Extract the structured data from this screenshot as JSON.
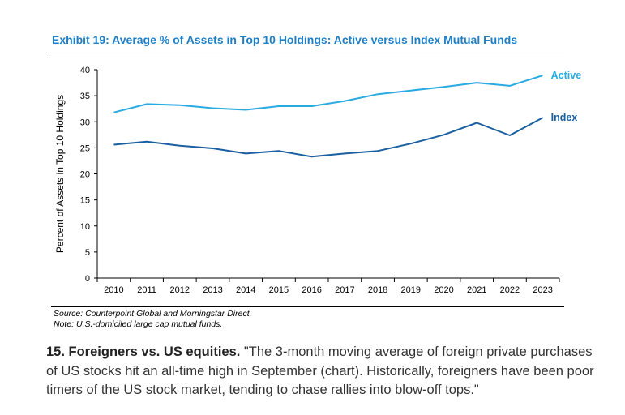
{
  "exhibit_title": "Exhibit 19: Average % of Assets in Top 10 Holdings: Active versus Index Mutual Funds",
  "chart_data": {
    "type": "line",
    "title": "Exhibit 19: Average % of Assets in Top 10 Holdings: Active versus Index Mutual Funds",
    "xlabel": "",
    "ylabel": "Percent of Assets in Top 10 Holdings",
    "x": [
      2010,
      2011,
      2012,
      2013,
      2014,
      2015,
      2016,
      2017,
      2018,
      2019,
      2020,
      2021,
      2022,
      2023
    ],
    "ylim": [
      0,
      40
    ],
    "yticks": [
      0,
      5,
      10,
      15,
      20,
      25,
      30,
      35,
      40
    ],
    "grid": false,
    "legend": "direct labels at right end of lines",
    "series": [
      {
        "name": "Active",
        "color": "#29abe2",
        "values": [
          31.8,
          33.4,
          33.2,
          32.6,
          32.3,
          33.0,
          33.0,
          34.0,
          35.3,
          36.0,
          36.7,
          37.5,
          36.9,
          38.9
        ]
      },
      {
        "name": "Index",
        "color": "#1a5fa0",
        "values": [
          25.6,
          26.2,
          25.4,
          24.9,
          23.9,
          24.4,
          23.3,
          23.9,
          24.4,
          25.8,
          27.5,
          29.8,
          27.4,
          30.8
        ]
      }
    ]
  },
  "footnotes": {
    "source": "Source: Counterpoint Global and Morningstar Direct.",
    "note": "Note: U.S.-domiciled large cap mutual funds."
  },
  "paragraph": {
    "lead": "15. Foreigners vs. US equities.",
    "body": " \"The 3-month moving average of foreign private purchases of US stocks hit an all-time high in September (chart). Historically, foreigners have been poor timers of the US stock market, tending to chase rallies into blow-off tops.\""
  }
}
